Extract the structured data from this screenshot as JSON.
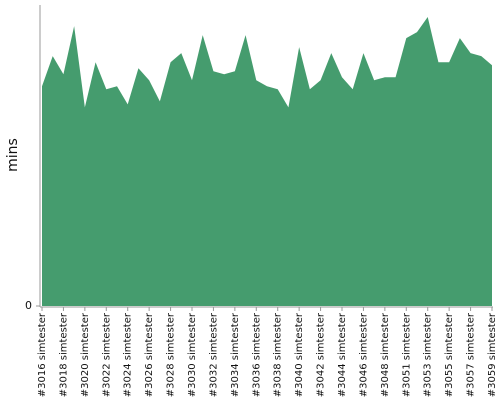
{
  "chart_data": {
    "type": "area",
    "y_label": "mins",
    "categories": [
      "#3016 simtester",
      null,
      "#3018 simtester",
      null,
      "#3020 simtester",
      null,
      "#3022 simtester",
      null,
      "#3024 simtester",
      null,
      "#3026 simtester",
      null,
      "#3028 simtester",
      null,
      "#3030 simtester",
      null,
      "#3032 simtester",
      null,
      "#3034 simtester",
      null,
      "#3036 simtester",
      null,
      "#3038 simtester",
      null,
      "#3040 simtester",
      null,
      "#3042 simtester",
      null,
      "#3044 simtester",
      null,
      "#3046 simtester",
      null,
      "#3048 simtester",
      null,
      "#3051 simtester",
      null,
      "#3053 simtester",
      null,
      "#3055 simtester",
      null,
      "#3057 simtester",
      null,
      "#3059 simtester"
    ],
    "values": [
      73,
      83,
      77,
      93,
      66,
      81,
      72,
      73,
      67,
      79,
      75,
      68,
      81,
      84,
      75,
      90,
      78,
      77,
      78,
      90,
      75,
      73,
      72,
      66,
      86,
      72,
      75,
      84,
      76,
      72,
      84,
      75,
      76,
      76,
      89,
      91,
      96,
      81,
      81,
      89,
      84,
      83,
      80
    ],
    "color": "#459c6e",
    "ylim": [
      0,
      100
    ],
    "yticks": [
      0
    ]
  }
}
